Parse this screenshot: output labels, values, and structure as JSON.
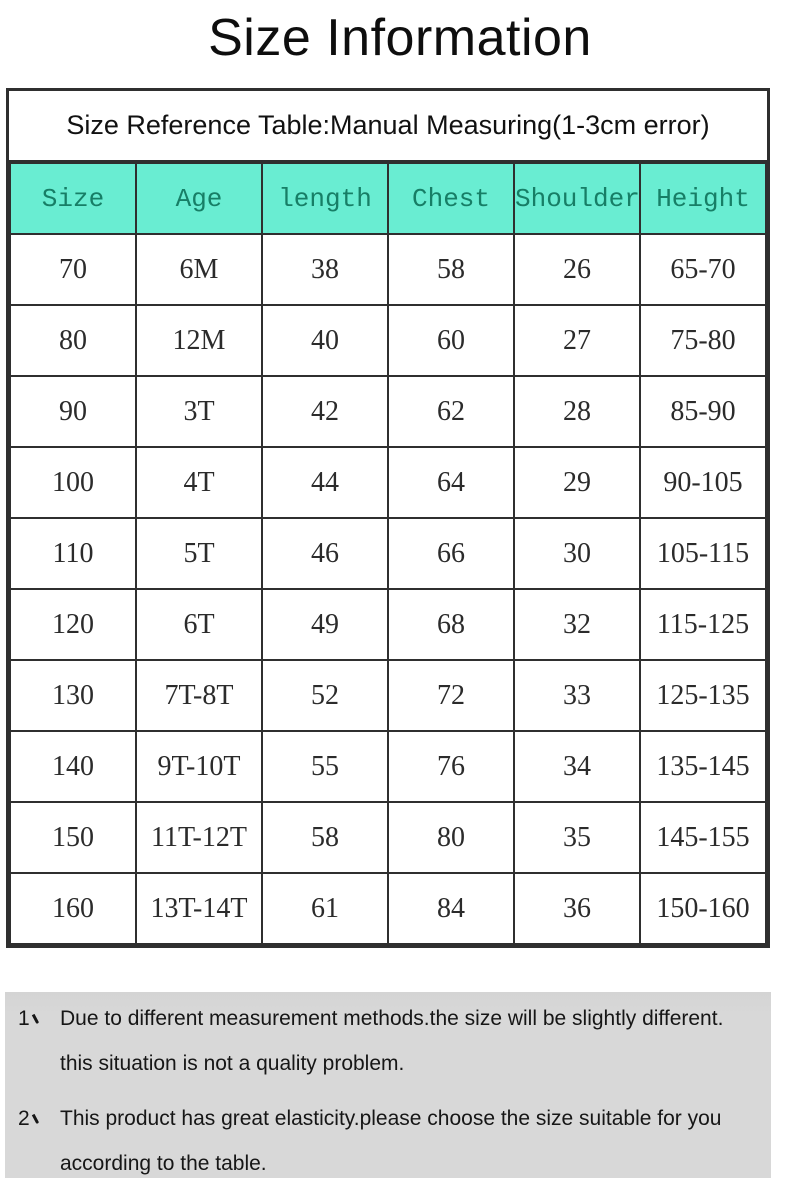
{
  "title": "Size Information",
  "table": {
    "caption": "Size Reference Table:Manual Measuring(1-3cm error)",
    "columns": [
      "Size",
      "Age",
      "length",
      "Chest",
      "Shoulder",
      "Height"
    ],
    "rows": [
      [
        "70",
        "6M",
        "38",
        "58",
        "26",
        "65-70"
      ],
      [
        "80",
        "12M",
        "40",
        "60",
        "27",
        "75-80"
      ],
      [
        "90",
        "3T",
        "42",
        "62",
        "28",
        "85-90"
      ],
      [
        "100",
        "4T",
        "44",
        "64",
        "29",
        "90-105"
      ],
      [
        "110",
        "5T",
        "46",
        "66",
        "30",
        "105-115"
      ],
      [
        "120",
        "6T",
        "49",
        "68",
        "32",
        "115-125"
      ],
      [
        "130",
        "7T-8T",
        "52",
        "72",
        "33",
        "125-135"
      ],
      [
        "140",
        "9T-10T",
        "55",
        "76",
        "34",
        "135-145"
      ],
      [
        "150",
        "11T-12T",
        "58",
        "80",
        "35",
        "145-155"
      ],
      [
        "160",
        "13T-14T",
        "61",
        "84",
        "36",
        "150-160"
      ]
    ]
  },
  "notes": [
    {
      "marker": "1、",
      "lines": [
        "Due to different measurement methods.the size will be slightly different.",
        "this situation is not a quality problem."
      ]
    },
    {
      "marker": "2、",
      "lines": [
        "This product has great elasticity.please choose the size suitable for you",
        "according to the table."
      ]
    }
  ],
  "colors": {
    "header_bg": "#69edd2",
    "header_text": "#177e66",
    "border_color": "#2f2f2f",
    "body_text": "#2b2b2b",
    "notes_bg": "#d8d8d8",
    "title_color": "#0e0e0e"
  }
}
